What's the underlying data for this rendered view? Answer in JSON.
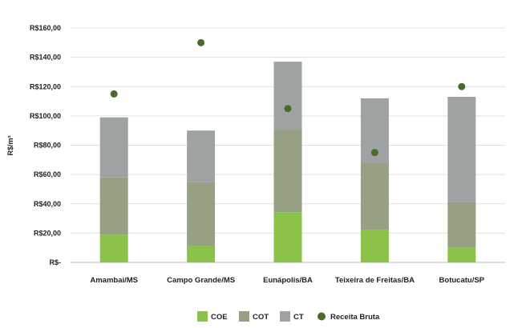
{
  "chart_data": {
    "type": "bar",
    "stacked": true,
    "ylabel": "R$/m³",
    "ylim": [
      0,
      160
    ],
    "yticks": [
      {
        "value": 0,
        "label": "R$-"
      },
      {
        "value": 20,
        "label": "R$20,00"
      },
      {
        "value": 40,
        "label": "R$40,00"
      },
      {
        "value": 60,
        "label": "R$60,00"
      },
      {
        "value": 80,
        "label": "R$80,00"
      },
      {
        "value": 100,
        "label": "R$100,00"
      },
      {
        "value": 120,
        "label": "R$120,00"
      },
      {
        "value": 140,
        "label": "R$140,00"
      },
      {
        "value": 160,
        "label": "R$160,00"
      }
    ],
    "grid": true,
    "legend_position": "bottom",
    "categories": [
      "Amambai/MS",
      "Campo Grande/MS",
      "Eunápolis/BA",
      "Teixeira de Freitas/BA",
      "Botucatu/SP"
    ],
    "series": [
      {
        "name": "COE",
        "kind": "bar",
        "color": "#8bc34a",
        "values": [
          19,
          11,
          34,
          22,
          10
        ]
      },
      {
        "name": "COT",
        "kind": "bar",
        "color": "#96a083",
        "values": [
          39,
          44,
          57,
          46,
          31
        ]
      },
      {
        "name": "CT",
        "kind": "bar",
        "color": "#9fa2a3",
        "values": [
          41,
          35,
          46,
          44,
          72
        ]
      },
      {
        "name": "Receita Bruta",
        "kind": "scatter",
        "color": "#4a6b2a",
        "values": [
          115,
          150,
          105,
          75,
          120
        ]
      }
    ]
  }
}
